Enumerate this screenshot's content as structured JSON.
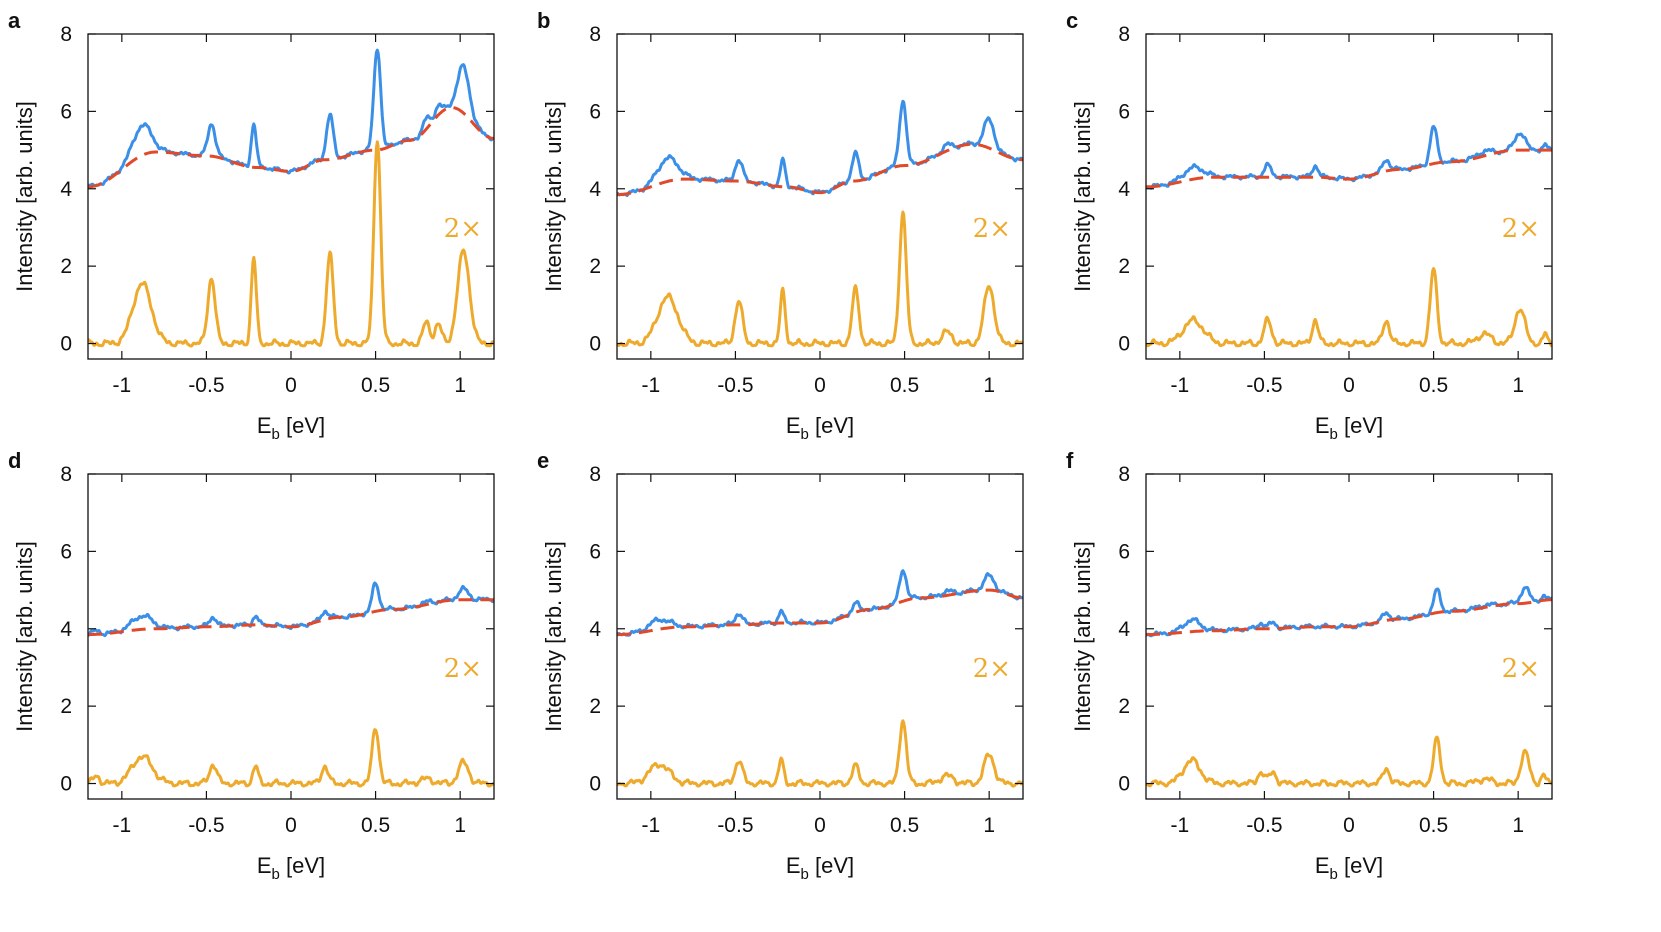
{
  "colors": {
    "measured": "#3b8fe6",
    "background": "#e04a2a",
    "difference": "#eeaa2c",
    "axis": "#111111"
  },
  "chart_data": [
    {
      "panel": "a",
      "type": "line",
      "scale_label": "2×",
      "xlabel_main": "E",
      "xlabel_sub": "b",
      "xlabel_unit": " [eV]",
      "ylabel": "Intensity [arb. units]",
      "xlim": [
        -1.2,
        1.2
      ],
      "ylim": [
        -0.4,
        8
      ],
      "xticks": [
        -1,
        -0.5,
        0,
        0.5,
        1
      ],
      "xtick_labels": [
        "-1",
        "-0.5",
        "0",
        "0.5",
        "1"
      ],
      "yticks": [
        0,
        2,
        4,
        6,
        8
      ],
      "ytick_labels": [
        "0",
        "2",
        "4",
        "6",
        "8"
      ],
      "background": {
        "x": [
          -1.2,
          -0.8,
          -0.5,
          -0.2,
          0,
          0.2,
          0.5,
          0.7,
          0.95,
          1.2
        ],
        "y": [
          4.05,
          4.95,
          4.85,
          4.55,
          4.45,
          4.75,
          5.0,
          5.25,
          6.1,
          5.3
        ]
      },
      "peaks": [
        {
          "center": -0.88,
          "height": 1.55,
          "width": 0.055
        },
        {
          "center": -0.47,
          "height": 1.7,
          "width": 0.022
        },
        {
          "center": -0.22,
          "height": 2.2,
          "width": 0.015
        },
        {
          "center": 0.23,
          "height": 2.3,
          "width": 0.02
        },
        {
          "center": 0.51,
          "height": 5.3,
          "width": 0.02
        },
        {
          "center": 0.8,
          "height": 0.55,
          "width": 0.02
        },
        {
          "center": 0.87,
          "height": 0.5,
          "width": 0.02
        },
        {
          "center": 1.02,
          "height": 2.4,
          "width": 0.035
        }
      ]
    },
    {
      "panel": "b",
      "type": "line",
      "scale_label": "2×",
      "xlabel_main": "E",
      "xlabel_sub": "b",
      "xlabel_unit": " [eV]",
      "ylabel": "Intensity [arb. units]",
      "xlim": [
        -1.2,
        1.2
      ],
      "ylim": [
        -0.4,
        8
      ],
      "xticks": [
        -1,
        -0.5,
        0,
        0.5,
        1
      ],
      "xtick_labels": [
        "-1",
        "-0.5",
        "0",
        "0.5",
        "1"
      ],
      "yticks": [
        0,
        2,
        4,
        6,
        8
      ],
      "ytick_labels": [
        "0",
        "2",
        "4",
        "6",
        "8"
      ],
      "background": {
        "x": [
          -1.2,
          -0.8,
          -0.5,
          -0.2,
          0,
          0.2,
          0.5,
          0.9,
          1.2
        ],
        "y": [
          3.85,
          4.25,
          4.2,
          4.05,
          3.9,
          4.2,
          4.6,
          5.15,
          4.75
        ]
      },
      "peaks": [
        {
          "center": -0.9,
          "height": 1.2,
          "width": 0.06
        },
        {
          "center": -0.48,
          "height": 1.1,
          "width": 0.022
        },
        {
          "center": -0.22,
          "height": 1.35,
          "width": 0.015
        },
        {
          "center": 0.21,
          "height": 1.4,
          "width": 0.02
        },
        {
          "center": 0.49,
          "height": 3.4,
          "width": 0.02
        },
        {
          "center": 0.75,
          "height": 0.3,
          "width": 0.03
        },
        {
          "center": 1.0,
          "height": 1.5,
          "width": 0.03
        }
      ]
    },
    {
      "panel": "c",
      "type": "line",
      "scale_label": "2×",
      "xlabel_main": "E",
      "xlabel_sub": "b",
      "xlabel_unit": " [eV]",
      "ylabel": "Intensity [arb. units]",
      "xlim": [
        -1.2,
        1.2
      ],
      "ylim": [
        -0.4,
        8
      ],
      "xticks": [
        -1,
        -0.5,
        0,
        0.5,
        1
      ],
      "xtick_labels": [
        "-1",
        "-0.5",
        "0",
        "0.5",
        "1"
      ],
      "yticks": [
        0,
        2,
        4,
        6,
        8
      ],
      "ytick_labels": [
        "0",
        "2",
        "4",
        "6",
        "8"
      ],
      "background": {
        "x": [
          -1.2,
          -0.8,
          -0.5,
          -0.2,
          0,
          0.3,
          0.6,
          1.0,
          1.2
        ],
        "y": [
          4.05,
          4.3,
          4.3,
          4.3,
          4.25,
          4.5,
          4.7,
          5.0,
          5.0
        ]
      },
      "peaks": [
        {
          "center": -0.92,
          "height": 0.6,
          "width": 0.06
        },
        {
          "center": -0.48,
          "height": 0.6,
          "width": 0.022
        },
        {
          "center": -0.2,
          "height": 0.6,
          "width": 0.018
        },
        {
          "center": 0.22,
          "height": 0.6,
          "width": 0.02
        },
        {
          "center": 0.5,
          "height": 1.9,
          "width": 0.02
        },
        {
          "center": 0.8,
          "height": 0.25,
          "width": 0.04
        },
        {
          "center": 1.01,
          "height": 0.9,
          "width": 0.03
        },
        {
          "center": 1.16,
          "height": 0.25,
          "width": 0.012
        }
      ]
    },
    {
      "panel": "d",
      "type": "line",
      "scale_label": "2×",
      "xlabel_main": "E",
      "xlabel_sub": "b",
      "xlabel_unit": " [eV]",
      "ylabel": "Intensity [arb. units]",
      "xlim": [
        -1.2,
        1.2
      ],
      "ylim": [
        -0.4,
        8
      ],
      "xticks": [
        -1,
        -0.5,
        0,
        0.5,
        1
      ],
      "xtick_labels": [
        "-1",
        "-0.5",
        "0",
        "0.5",
        "1"
      ],
      "yticks": [
        0,
        2,
        4,
        6,
        8
      ],
      "ytick_labels": [
        "0",
        "2",
        "4",
        "6",
        "8"
      ],
      "background": {
        "x": [
          -1.2,
          -0.8,
          -0.5,
          -0.2,
          0,
          0.3,
          0.6,
          1.0,
          1.2
        ],
        "y": [
          3.85,
          4.0,
          4.05,
          4.1,
          4.05,
          4.3,
          4.5,
          4.75,
          4.75
        ]
      },
      "peaks": [
        {
          "center": -1.15,
          "height": 0.2,
          "width": 0.02
        },
        {
          "center": -0.88,
          "height": 0.7,
          "width": 0.06
        },
        {
          "center": -0.46,
          "height": 0.5,
          "width": 0.022
        },
        {
          "center": -0.21,
          "height": 0.45,
          "width": 0.015
        },
        {
          "center": 0.2,
          "height": 0.45,
          "width": 0.02
        },
        {
          "center": 0.5,
          "height": 1.45,
          "width": 0.02
        },
        {
          "center": 0.8,
          "height": 0.12,
          "width": 0.04
        },
        {
          "center": 1.02,
          "height": 0.55,
          "width": 0.03
        }
      ]
    },
    {
      "panel": "e",
      "type": "line",
      "scale_label": "2×",
      "xlabel_main": "E",
      "xlabel_sub": "b",
      "xlabel_unit": " [eV]",
      "ylabel": "Intensity [arb. units]",
      "xlim": [
        -1.2,
        1.2
      ],
      "ylim": [
        -0.4,
        8
      ],
      "xticks": [
        -1,
        -0.5,
        0,
        0.5,
        1
      ],
      "xtick_labels": [
        "-1",
        "-0.5",
        "0",
        "0.5",
        "1"
      ],
      "yticks": [
        0,
        2,
        4,
        6,
        8
      ],
      "ytick_labels": [
        "0",
        "2",
        "4",
        "6",
        "8"
      ],
      "background": {
        "x": [
          -1.2,
          -0.8,
          -0.5,
          -0.2,
          0,
          0.3,
          0.6,
          1.0,
          1.2
        ],
        "y": [
          3.85,
          4.05,
          4.1,
          4.15,
          4.15,
          4.5,
          4.8,
          5.0,
          4.8
        ]
      },
      "peaks": [
        {
          "center": -0.95,
          "height": 0.5,
          "width": 0.06
        },
        {
          "center": -0.48,
          "height": 0.6,
          "width": 0.022
        },
        {
          "center": -0.23,
          "height": 0.6,
          "width": 0.015
        },
        {
          "center": 0.21,
          "height": 0.45,
          "width": 0.02
        },
        {
          "center": 0.49,
          "height": 1.65,
          "width": 0.02
        },
        {
          "center": 0.75,
          "height": 0.2,
          "width": 0.04
        },
        {
          "center": 1.0,
          "height": 0.75,
          "width": 0.03
        }
      ]
    },
    {
      "panel": "f",
      "type": "line",
      "scale_label": "2×",
      "xlabel_main": "E",
      "xlabel_sub": "b",
      "xlabel_unit": " [eV]",
      "ylabel": "Intensity [arb. units]",
      "xlim": [
        -1.2,
        1.2
      ],
      "ylim": [
        -0.4,
        8
      ],
      "xticks": [
        -1,
        -0.5,
        0,
        0.5,
        1
      ],
      "xtick_labels": [
        "-1",
        "-0.5",
        "0",
        "0.5",
        "1"
      ],
      "yticks": [
        0,
        2,
        4,
        6,
        8
      ],
      "ytick_labels": [
        "0",
        "2",
        "4",
        "6",
        "8"
      ],
      "background": {
        "x": [
          -1.2,
          -0.8,
          -0.5,
          -0.2,
          0,
          0.3,
          0.6,
          1.0,
          1.2
        ],
        "y": [
          3.85,
          3.95,
          4.0,
          4.05,
          4.05,
          4.25,
          4.45,
          4.65,
          4.75
        ]
      },
      "peaks": [
        {
          "center": -0.93,
          "height": 0.6,
          "width": 0.05
        },
        {
          "center": -0.52,
          "height": 0.3,
          "width": 0.02
        },
        {
          "center": -0.45,
          "height": 0.3,
          "width": 0.02
        },
        {
          "center": 0.22,
          "height": 0.4,
          "width": 0.02
        },
        {
          "center": 0.52,
          "height": 1.15,
          "width": 0.02
        },
        {
          "center": 0.8,
          "height": 0.12,
          "width": 0.04
        },
        {
          "center": 1.04,
          "height": 0.8,
          "width": 0.025
        },
        {
          "center": 1.15,
          "height": 0.2,
          "width": 0.015
        }
      ]
    }
  ]
}
